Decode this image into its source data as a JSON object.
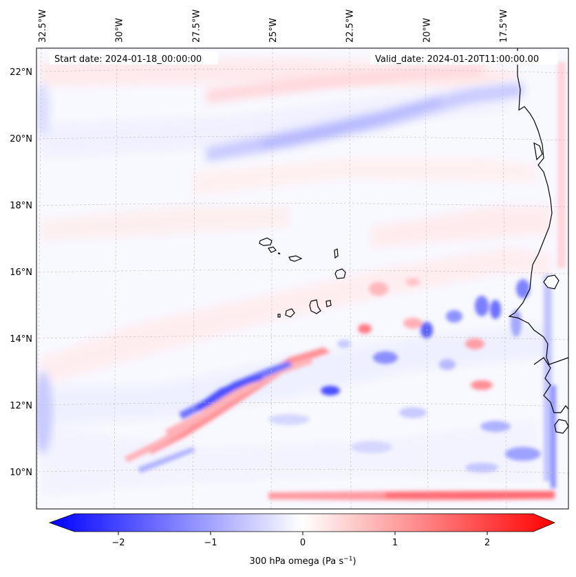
{
  "map": {
    "projection": "Lambert conformal",
    "extent": {
      "lon_min": -33.0,
      "lon_max": -15.5,
      "lat_min": 9.0,
      "lat_max": 22.5
    },
    "lon_ticks": [
      {
        "value": -32.5,
        "label": "32.5°W"
      },
      {
        "value": -30.0,
        "label": "30°W"
      },
      {
        "value": -27.5,
        "label": "27.5°W"
      },
      {
        "value": -25.0,
        "label": "25°W"
      },
      {
        "value": -22.5,
        "label": "22.5°W"
      },
      {
        "value": -20.0,
        "label": "20°W"
      },
      {
        "value": -17.5,
        "label": "17.5°W"
      }
    ],
    "lat_ticks": [
      {
        "value": 22,
        "label": "22°N"
      },
      {
        "value": 20,
        "label": "20°N"
      },
      {
        "value": 18,
        "label": "18°N"
      },
      {
        "value": 16,
        "label": "16°N"
      },
      {
        "value": 14,
        "label": "14°N"
      },
      {
        "value": 12,
        "label": "12°N"
      },
      {
        "value": 10,
        "label": "10°N"
      }
    ],
    "start_date": "Start date: 2024-01-18_00:00:00",
    "valid_date": "Valid_date: 2024-01-20T11:00:00.00",
    "features": [
      "Cape Verde islands",
      "West African coastline (Mauritania, Senegal, Gambia, Guinea-Bissau)"
    ]
  },
  "colorbar": {
    "title": "300 hPa omega (Pa s",
    "title_superscript": "−1",
    "title_close": ")",
    "range": [
      -2.7,
      2.7
    ],
    "ticks": [
      {
        "value": -2,
        "label": "−2"
      },
      {
        "value": -1,
        "label": "−1"
      },
      {
        "value": 0,
        "label": "0"
      },
      {
        "value": 1,
        "label": "1"
      },
      {
        "value": 2,
        "label": "2"
      }
    ],
    "colors": {
      "min": "#0000ff",
      "mid": "#ffffff",
      "max": "#ff0000"
    }
  }
}
